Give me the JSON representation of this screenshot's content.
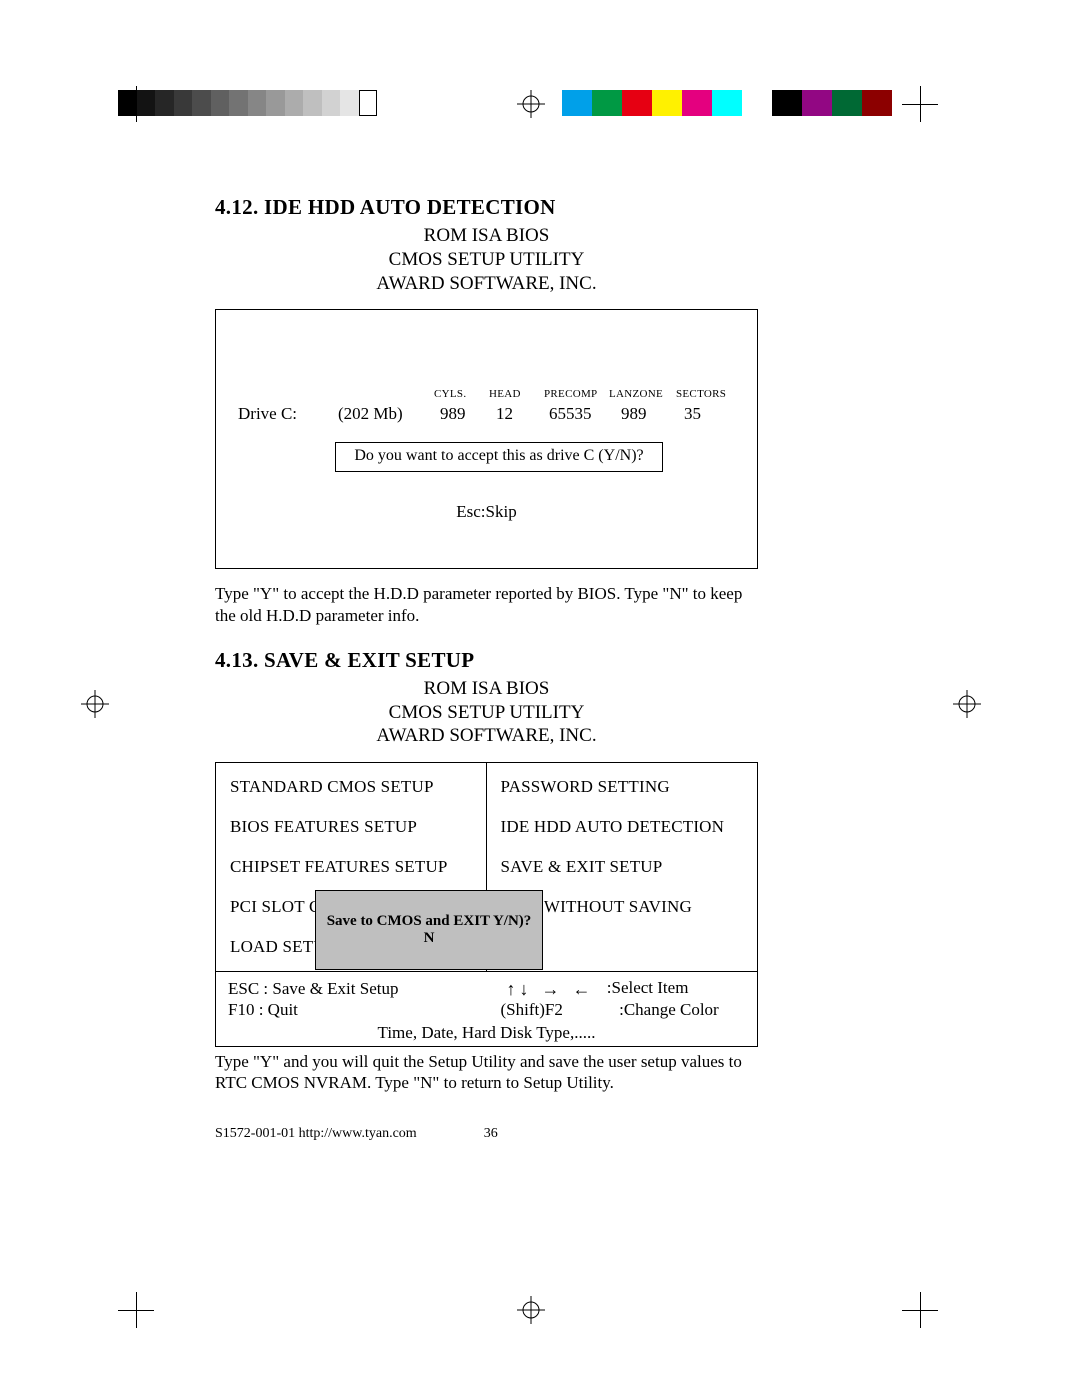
{
  "grayscale_swatches": [
    "#000000",
    "#131313",
    "#262626",
    "#393939",
    "#4c4c4c",
    "#606060",
    "#737373",
    "#868686",
    "#999999",
    "#acacac",
    "#bfbfbf",
    "#d2d2d2",
    "#e5e5e5",
    "#ffffff"
  ],
  "color_swatches": [
    "#00a0e9",
    "#009944",
    "#e60012",
    "#fff100",
    "#e4007f",
    "#00ffff",
    "#ffffff",
    "#000000",
    "#920783",
    "#006934",
    "#8c0000"
  ],
  "section1": {
    "title": "4.12. IDE HDD AUTO DETECTION",
    "sub1": "ROM ISA BIOS",
    "sub2": "CMOS SETUP UTILITY",
    "sub3": "AWARD SOFTWARE, INC."
  },
  "hdd": {
    "headers": {
      "cyls": "CYLS.",
      "head": "HEAD",
      "precomp": "PRECOMP",
      "lanzone": "LANZONE",
      "sectors": "SECTORS"
    },
    "drive_label": "Drive C:",
    "size": "(202 Mb)",
    "cyls": "989",
    "head": "12",
    "precomp": "65535",
    "lanzone": "989",
    "sectors": "35",
    "prompt": "Do you want to accept this as drive C (Y/N)?",
    "esc": "Esc:Skip"
  },
  "para1": "Type \"Y\" to accept the H.D.D parameter reported by BIOS.  Type \"N\" to keep the old H.D.D parameter info.",
  "section2": {
    "title": "4.13. SAVE & EXIT SETUP",
    "sub1": "ROM ISA BIOS",
    "sub2": "CMOS SETUP UTILITY",
    "sub3": "AWARD SOFTWARE, INC."
  },
  "menu": {
    "left": [
      "STANDARD CMOS SETUP",
      "BIOS FEATURES SETUP",
      "CHIPSET FEATURES SETUP",
      "PCI SLOT CONFIGURATION",
      "LOAD SETUP DEFAULTS"
    ],
    "right": [
      "PASSWORD SETTING",
      "IDE HDD AUTO DETECTION",
      "SAVE & EXIT SETUP",
      "EXIT WITHOUT SAVING"
    ]
  },
  "dialog_text": "Save to CMOS and EXIT Y/N)? N",
  "bottom": {
    "esc": "ESC : Save & Exit Setup",
    "f10": "F10  : Quit",
    "select": ":Select  Item",
    "shiftf2": "(Shift)F2",
    "change": ":Change Color",
    "footer": "Time, Date, Hard Disk Type,....."
  },
  "para2": "Type \"Y\" and you will quit the Setup Utility and save the user setup values to RTC CMOS NVRAM.  Type \"N\" to return to Setup Utility.",
  "page_footer_left": "S1572-001-01  http://www.tyan.com",
  "page_footer_num": "36",
  "arrows": "↑↓ → ←"
}
